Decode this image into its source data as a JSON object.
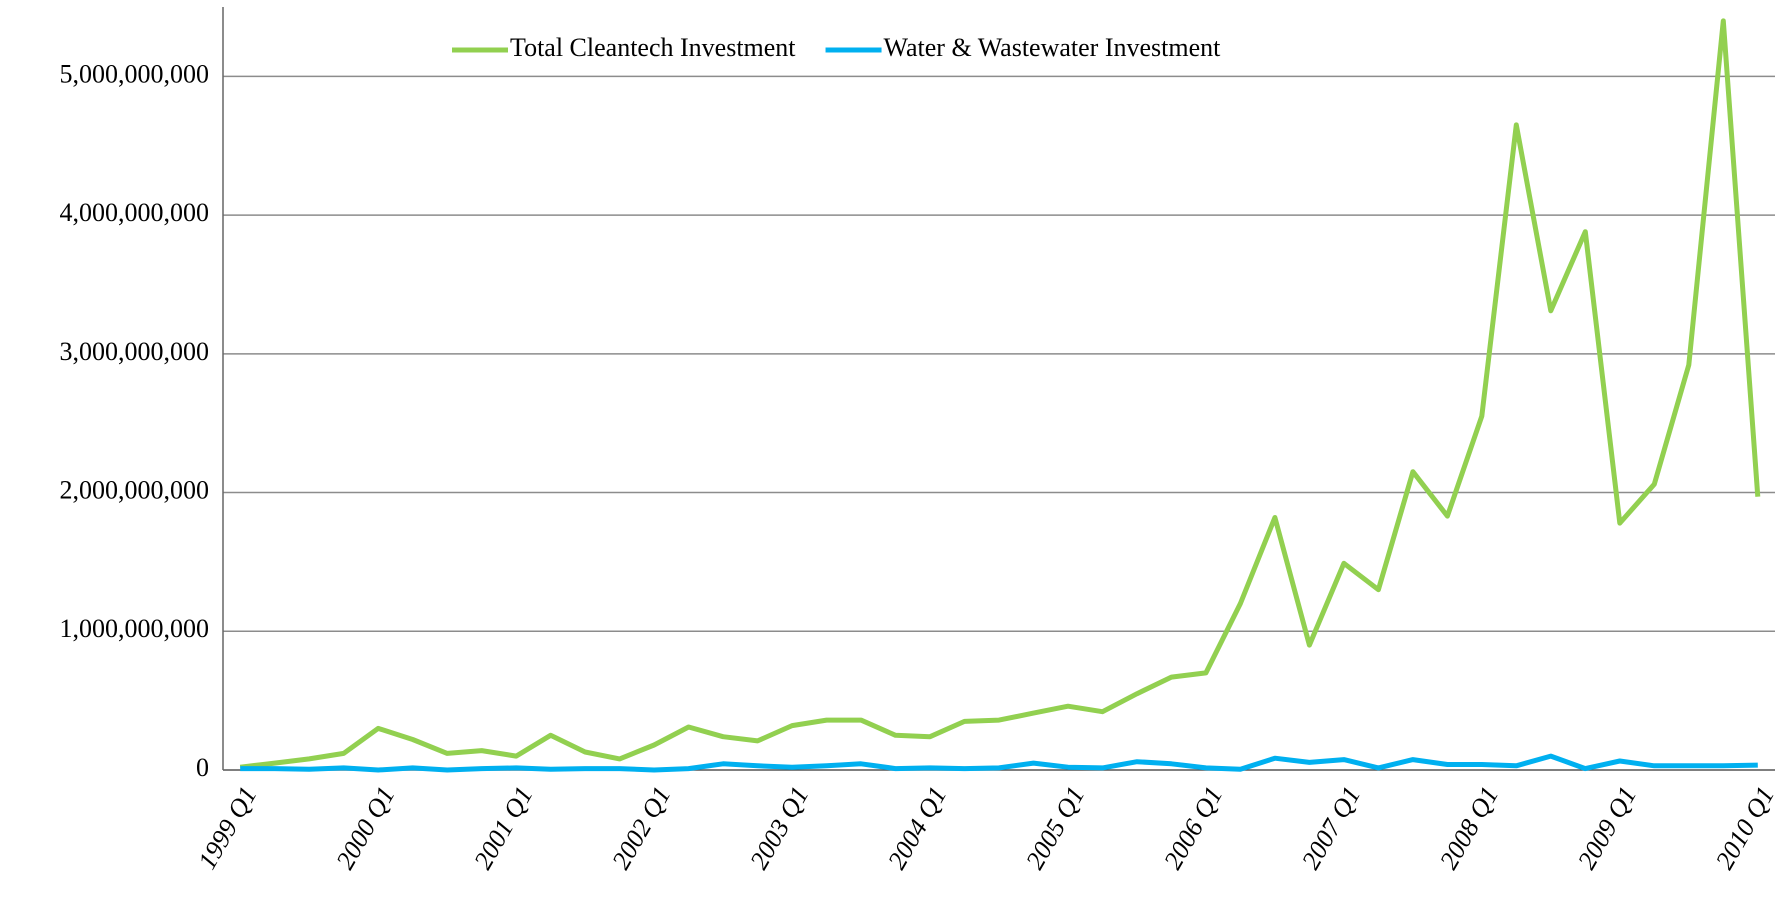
{
  "chart_data": {
    "type": "line",
    "categories": [
      "1999 Q1",
      null,
      null,
      null,
      "2000 Q1",
      null,
      null,
      null,
      "2001 Q1",
      null,
      null,
      null,
      "2002 Q1",
      null,
      null,
      null,
      "2003 Q1",
      null,
      null,
      null,
      "2004 Q1",
      null,
      null,
      null,
      "2005 Q1",
      null,
      null,
      null,
      "2006 Q1",
      null,
      null,
      null,
      "2007 Q1",
      null,
      null,
      null,
      "2008 Q1",
      null,
      null,
      null,
      "2009 Q1",
      null,
      null,
      null,
      "2010 Q1"
    ],
    "series": [
      {
        "name": "Total Cleantech Investment",
        "color": "#92d050",
        "values": [
          20000000,
          50000000,
          80000000,
          120000000,
          300000000,
          220000000,
          120000000,
          140000000,
          100000000,
          250000000,
          130000000,
          80000000,
          180000000,
          310000000,
          240000000,
          210000000,
          320000000,
          360000000,
          360000000,
          250000000,
          240000000,
          350000000,
          360000000,
          410000000,
          460000000,
          420000000,
          550000000,
          670000000,
          700000000,
          1200000000,
          1820000000,
          900000000,
          1490000000,
          1300000000,
          2150000000,
          1830000000,
          2550000000,
          4650000000,
          3310000000,
          3880000000,
          1780000000,
          2060000000,
          2920000000,
          5400000000,
          1970000000
        ]
      },
      {
        "name": "Water & Wastewater Investment",
        "color": "#00b0f0",
        "values": [
          10000000,
          10000000,
          5000000,
          15000000,
          0,
          15000000,
          0,
          10000000,
          15000000,
          5000000,
          10000000,
          10000000,
          0,
          10000000,
          45000000,
          30000000,
          20000000,
          30000000,
          45000000,
          10000000,
          15000000,
          10000000,
          15000000,
          50000000,
          20000000,
          15000000,
          60000000,
          45000000,
          15000000,
          5000000,
          85000000,
          55000000,
          75000000,
          15000000,
          75000000,
          40000000,
          40000000,
          30000000,
          100000000,
          10000000,
          65000000,
          30000000,
          30000000,
          30000000,
          35000000
        ]
      }
    ],
    "ylim": [
      0,
      5500000000
    ],
    "yticks": [
      0,
      {
        "value": 1000000000,
        "label": "1,000,000,000"
      },
      {
        "value": 2000000000,
        "label": "2,000,000,000"
      },
      {
        "value": 3000000000,
        "label": "3,000,000,000"
      },
      {
        "value": 4000000000,
        "label": "4,000,000,000"
      },
      {
        "value": 5000000000,
        "label": "5,000,000,000"
      }
    ],
    "grid": true,
    "legend": "top"
  }
}
